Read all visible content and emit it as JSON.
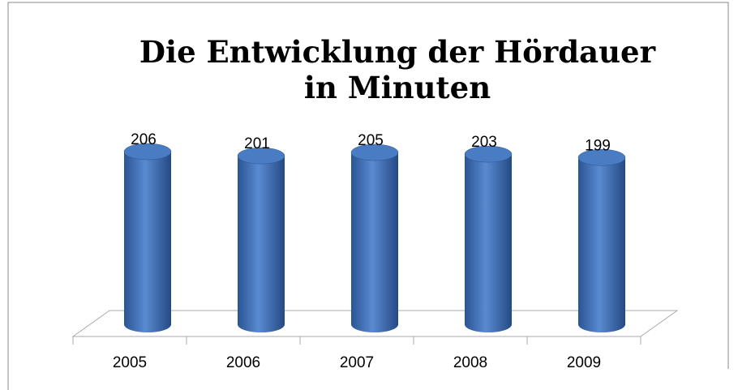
{
  "chart_data": {
    "type": "bar",
    "title": "Die Entwicklung der Hördauer\nin Minuten",
    "categories": [
      "2005",
      "2006",
      "2007",
      "2008",
      "2009"
    ],
    "values": [
      206,
      201,
      205,
      203,
      199
    ],
    "color": "#3a6cb5"
  }
}
